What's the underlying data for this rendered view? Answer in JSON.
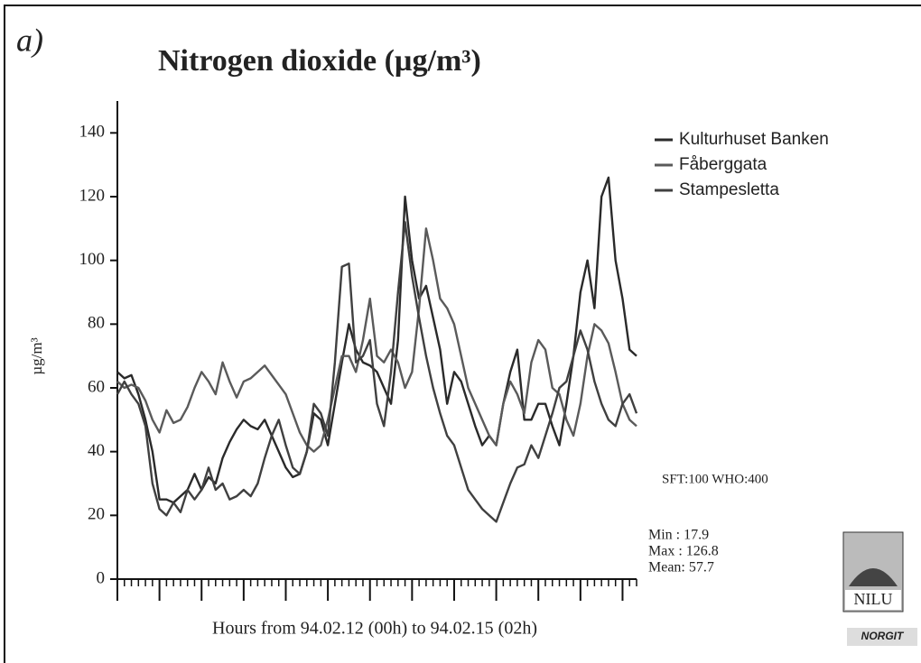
{
  "chart_data": {
    "type": "line",
    "annotation": "a)",
    "title": "Nitrogen dioxide   (µg/m³)",
    "ylabel": "µg/m³",
    "xlabel": "Hours from 94.02.12 (00h) to 94.02.15 (02h)",
    "x": [
      0,
      1,
      2,
      3,
      4,
      5,
      6,
      7,
      8,
      9,
      10,
      11,
      12,
      13,
      14,
      15,
      16,
      17,
      18,
      19,
      20,
      21,
      22,
      23,
      24,
      25,
      26,
      27,
      28,
      29,
      30,
      31,
      32,
      33,
      34,
      35,
      36,
      37,
      38,
      39,
      40,
      41,
      42,
      43,
      44,
      45,
      46,
      47,
      48,
      49,
      50,
      51,
      52,
      53,
      54,
      55,
      56,
      57,
      58,
      59,
      60,
      61,
      62,
      63,
      64,
      65,
      66,
      67,
      68,
      69,
      70,
      71,
      72,
      73,
      74
    ],
    "xlim": [
      0,
      74
    ],
    "ylim": [
      0,
      150
    ],
    "yticks": [
      0,
      20,
      40,
      60,
      80,
      100,
      120,
      140
    ],
    "series": [
      {
        "name": "Kulturhuset  Banken",
        "color": "#2a2a2a",
        "values": [
          65,
          63,
          64,
          58,
          50,
          40,
          25,
          25,
          24,
          26,
          28,
          33,
          28,
          32,
          30,
          38,
          43,
          47,
          50,
          48,
          47,
          50,
          45,
          40,
          35,
          32,
          33,
          40,
          52,
          50,
          42,
          55,
          68,
          80,
          72,
          68,
          67,
          65,
          60,
          55,
          75,
          120,
          100,
          88,
          92,
          82,
          72,
          55,
          65,
          62,
          55,
          48,
          42,
          45,
          42,
          55,
          65,
          72,
          50,
          50,
          55,
          55,
          48,
          42,
          55,
          70,
          90,
          100,
          85,
          120,
          126,
          100,
          88,
          72,
          70
        ]
      },
      {
        "name": "Fåberggata",
        "color": "#5a5a5a",
        "values": [
          62,
          60,
          61,
          60,
          56,
          50,
          46,
          53,
          49,
          50,
          54,
          60,
          65,
          62,
          58,
          68,
          62,
          57,
          62,
          63,
          65,
          67,
          64,
          61,
          58,
          52,
          46,
          42,
          40,
          42,
          50,
          60,
          70,
          70,
          65,
          75,
          88,
          70,
          68,
          72,
          68,
          60,
          65,
          85,
          110,
          100,
          88,
          85,
          80,
          70,
          60,
          55,
          50,
          45,
          42,
          55,
          62,
          58,
          52,
          68,
          75,
          72,
          60,
          58,
          50,
          45,
          55,
          70,
          80,
          78,
          74,
          65,
          55,
          50,
          48
        ]
      },
      {
        "name": "Stampesletta",
        "color": "#404040",
        "values": [
          58,
          62,
          58,
          55,
          48,
          30,
          22,
          20,
          24,
          21,
          28,
          25,
          28,
          35,
          28,
          30,
          25,
          26,
          28,
          26,
          30,
          38,
          45,
          50,
          42,
          35,
          33,
          40,
          55,
          52,
          45,
          68,
          98,
          99,
          68,
          70,
          75,
          55,
          48,
          65,
          90,
          112,
          95,
          82,
          70,
          60,
          52,
          45,
          42,
          35,
          28,
          25,
          22,
          20,
          18,
          24,
          30,
          35,
          36,
          42,
          38,
          45,
          52,
          60,
          62,
          70,
          78,
          72,
          62,
          55,
          50,
          48,
          55,
          58,
          52
        ]
      }
    ],
    "limits_note": "SFT:100   WHO:400",
    "stats": [
      "Min  :  17.9",
      "Max  :  126.8",
      "Mean:  57.7"
    ],
    "logo": "NILU",
    "sponsor": "NORGIT"
  }
}
